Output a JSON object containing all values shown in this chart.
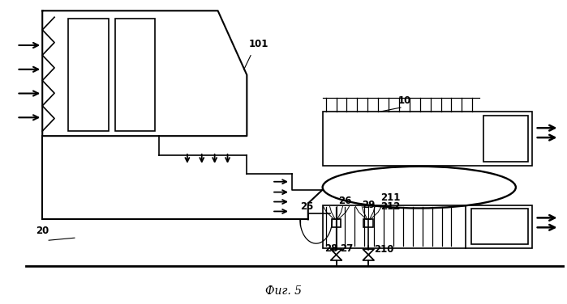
{
  "caption": "Фиг. 5",
  "bg": "#ffffff",
  "lc": "#000000"
}
